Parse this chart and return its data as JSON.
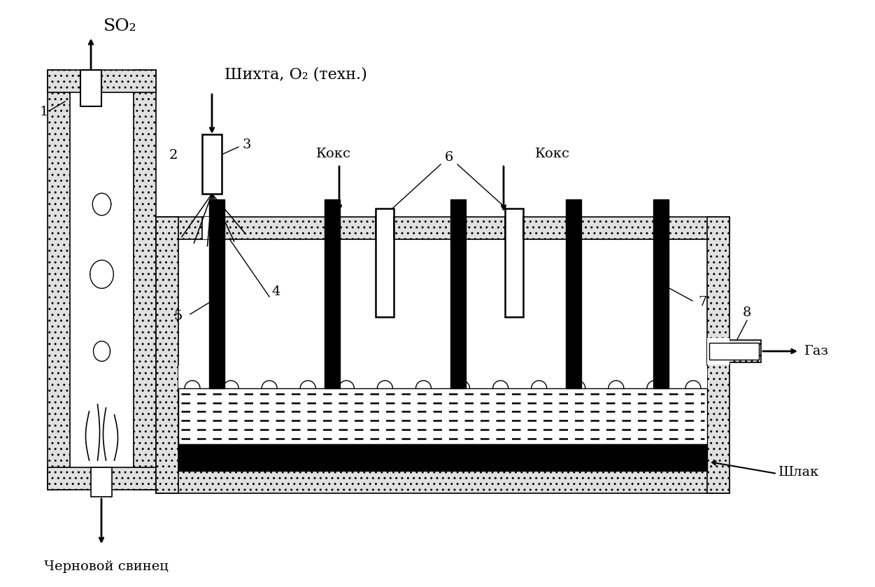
{
  "bg_color": "#ffffff",
  "black": "#000000",
  "labels": {
    "SO2": "SO₂",
    "shikhta": "Шихта, O₂ (техн.)",
    "koks1": "Кокс",
    "koks2": "Кокс",
    "gaz": "Газ",
    "shlak": "Шлак",
    "chernov": "Черновой свинец",
    "num1": "1",
    "num2": "2",
    "num3": "3",
    "num4": "4",
    "num5": "5",
    "num6": "6",
    "num7": "7",
    "num8": "8"
  },
  "figsize": [
    12.51,
    8.39
  ],
  "dpi": 100
}
